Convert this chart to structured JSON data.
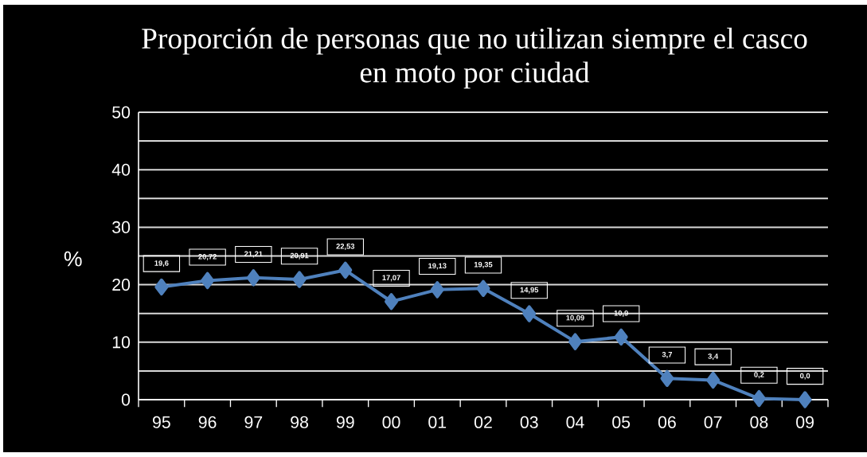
{
  "chart_data": {
    "type": "line",
    "title": "Proporción de personas que no utilizan siempre el casco en moto por ciudad",
    "ylabel": "%",
    "categories": [
      "95",
      "96",
      "97",
      "98",
      "99",
      "00",
      "01",
      "02",
      "03",
      "04",
      "05",
      "06",
      "07",
      "08",
      "09"
    ],
    "values": [
      19.6,
      20.72,
      21.21,
      20.91,
      22.53,
      17.07,
      19.13,
      19.35,
      14.95,
      10.09,
      10.9,
      3.7,
      3.4,
      0.2,
      0.0
    ],
    "value_labels": [
      "19,6",
      "20,72",
      "21,21",
      "20,91",
      "22,53",
      "17,07",
      "19,13",
      "19,35",
      "14,95",
      "10,09",
      "10,9",
      "3,7",
      "3,4",
      "0,2",
      "0,0"
    ],
    "color": "#4f81bd",
    "marker": "diamond",
    "line_style": "solid",
    "ylim": [
      0,
      50
    ],
    "yticks": [
      0,
      {
        "value": 5,
        "label": null
      },
      10,
      {
        "value": 15,
        "label": null
      },
      20,
      {
        "value": 25,
        "label": null
      },
      30,
      {
        "value": 35,
        "label": null
      },
      40,
      {
        "value": 45,
        "label": null
      },
      50
    ],
    "grid": "y"
  }
}
